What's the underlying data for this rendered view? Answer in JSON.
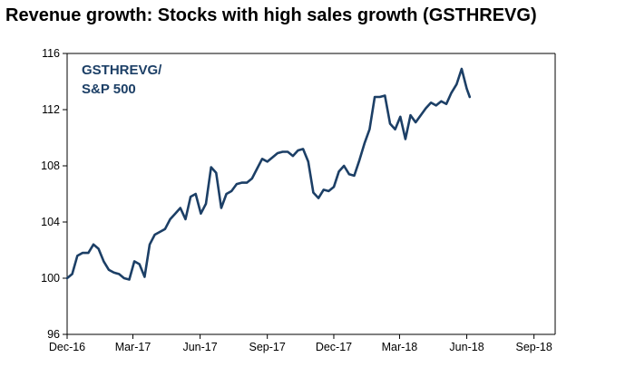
{
  "chart_data": {
    "type": "line",
    "title": "Revenue growth: Stocks with high sales growth (GSTHREVG)",
    "xlabel": "",
    "ylabel": "",
    "ylim": [
      96,
      116
    ],
    "y_ticks": [
      "96",
      "100",
      "104",
      "108",
      "112",
      "116"
    ],
    "x_range": [
      "2016-12-01",
      "2018-09-30"
    ],
    "x_ticks": [
      {
        "label": "Dec-16",
        "date": "2016-12-01"
      },
      {
        "label": "Mar-17",
        "date": "2017-03-01"
      },
      {
        "label": "Jun-17",
        "date": "2017-06-01"
      },
      {
        "label": "Sep-17",
        "date": "2017-09-01"
      },
      {
        "label": "Dec-17",
        "date": "2017-12-01"
      },
      {
        "label": "Mar-18",
        "date": "2018-03-01"
      },
      {
        "label": "Jun-18",
        "date": "2018-06-01"
      },
      {
        "label": "Sep-18",
        "date": "2018-09-01"
      }
    ],
    "grid": false,
    "legend": {
      "position": "top-left",
      "lines": [
        "GSTHREVG/",
        "S&P 500"
      ]
    },
    "colors": {
      "series": "#1c3f66",
      "legend": "#1c3f66",
      "axis": "#000000"
    },
    "series": [
      {
        "name": "GSTHREVG/S&P 500",
        "x": [
          "2016-12-01",
          "2016-12-08",
          "2016-12-15",
          "2016-12-22",
          "2016-12-30",
          "2017-01-06",
          "2017-01-13",
          "2017-01-20",
          "2017-01-27",
          "2017-02-03",
          "2017-02-10",
          "2017-02-17",
          "2017-02-24",
          "2017-03-03",
          "2017-03-10",
          "2017-03-17",
          "2017-03-24",
          "2017-03-31",
          "2017-04-07",
          "2017-04-14",
          "2017-04-21",
          "2017-04-28",
          "2017-05-05",
          "2017-05-12",
          "2017-05-19",
          "2017-05-26",
          "2017-06-02",
          "2017-06-09",
          "2017-06-16",
          "2017-06-23",
          "2017-06-30",
          "2017-07-07",
          "2017-07-14",
          "2017-07-21",
          "2017-07-28",
          "2017-08-04",
          "2017-08-11",
          "2017-08-18",
          "2017-08-25",
          "2017-09-01",
          "2017-09-08",
          "2017-09-15",
          "2017-09-22",
          "2017-09-29",
          "2017-10-06",
          "2017-10-13",
          "2017-10-20",
          "2017-10-27",
          "2017-11-03",
          "2017-11-10",
          "2017-11-17",
          "2017-11-24",
          "2017-12-01",
          "2017-12-08",
          "2017-12-15",
          "2017-12-22",
          "2017-12-29",
          "2018-01-05",
          "2018-01-12",
          "2018-01-19",
          "2018-01-26",
          "2018-02-02",
          "2018-02-09",
          "2018-02-16",
          "2018-02-23",
          "2018-03-02",
          "2018-03-09",
          "2018-03-16",
          "2018-03-23",
          "2018-03-30",
          "2018-04-06",
          "2018-04-13",
          "2018-04-20",
          "2018-04-27",
          "2018-05-04",
          "2018-05-11",
          "2018-05-18",
          "2018-05-25",
          "2018-06-01",
          "2018-06-05"
        ],
        "values": [
          100.0,
          100.3,
          101.6,
          101.8,
          101.8,
          102.4,
          102.1,
          101.2,
          100.6,
          100.4,
          100.3,
          100.0,
          99.9,
          101.2,
          101.0,
          100.1,
          102.4,
          103.1,
          103.3,
          103.5,
          104.2,
          104.6,
          105.0,
          104.2,
          105.8,
          106.0,
          104.6,
          105.3,
          107.9,
          107.5,
          105.0,
          106.0,
          106.2,
          106.7,
          106.8,
          106.8,
          107.1,
          107.8,
          108.5,
          108.3,
          108.6,
          108.9,
          109.0,
          109.0,
          108.7,
          109.1,
          109.2,
          108.3,
          106.1,
          105.7,
          106.3,
          106.2,
          106.5,
          107.6,
          108.0,
          107.4,
          107.3,
          108.4,
          109.6,
          110.6,
          112.9,
          112.9,
          113.0,
          111.0,
          110.6,
          111.5,
          109.9,
          111.6,
          111.1,
          111.6,
          112.1,
          112.5,
          112.3,
          112.6,
          112.4,
          113.2,
          113.8,
          114.9,
          113.5,
          112.9
        ]
      }
    ]
  }
}
